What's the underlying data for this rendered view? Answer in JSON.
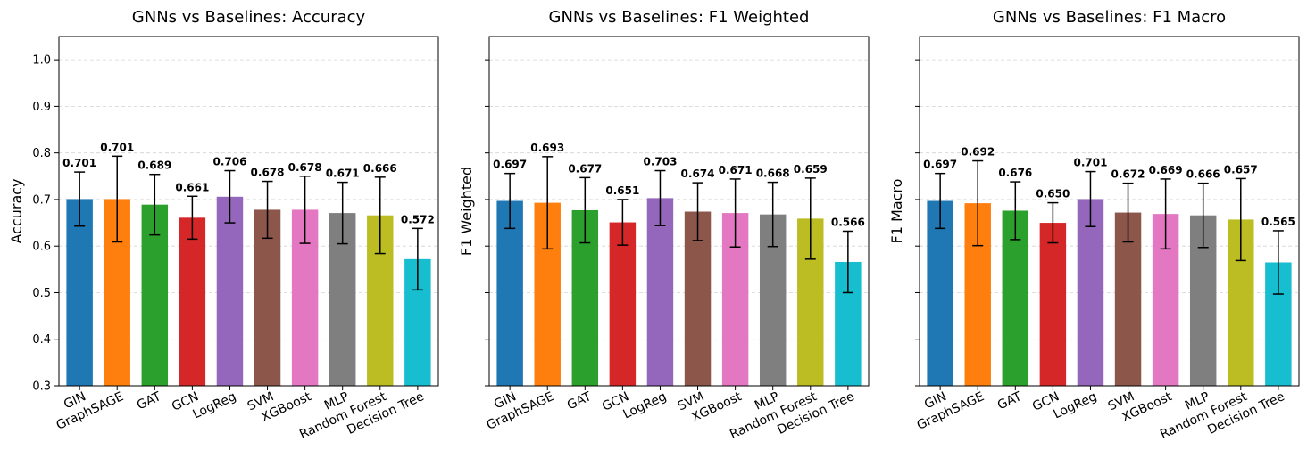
{
  "chart_data": [
    {
      "type": "bar",
      "title": "GNNs vs Baselines: Accuracy",
      "xlabel": "",
      "ylabel": "Accuracy",
      "ylim": [
        0.3,
        1.05
      ],
      "yticks": [
        "0.3",
        "0.4",
        "0.5",
        "0.6",
        "0.7",
        "0.8",
        "0.9",
        "1.0"
      ],
      "show_ytick_labels": true,
      "grid": "y, dashed",
      "categories": [
        "GIN",
        "GraphSAGE",
        "GAT",
        "GCN",
        "LogReg",
        "SVM",
        "XGBoost",
        "MLP",
        "Random Forest",
        "Decision Tree"
      ],
      "values": [
        0.701,
        0.701,
        0.689,
        0.661,
        0.706,
        0.678,
        0.678,
        0.671,
        0.666,
        0.572
      ],
      "value_labels": [
        "0.701",
        "0.701",
        "0.689",
        "0.661",
        "0.706",
        "0.678",
        "0.678",
        "0.671",
        "0.666",
        "0.572"
      ],
      "errors": [
        0.058,
        0.092,
        0.065,
        0.046,
        0.056,
        0.061,
        0.072,
        0.066,
        0.082,
        0.066
      ],
      "colors": [
        "#1f77b4",
        "#ff7f0e",
        "#2ca02c",
        "#d62728",
        "#9467bd",
        "#8c564b",
        "#e377c2",
        "#7f7f7f",
        "#bcbd22",
        "#17becf"
      ]
    },
    {
      "type": "bar",
      "title": "GNNs vs Baselines: F1 Weighted",
      "xlabel": "",
      "ylabel": "F1 Weighted",
      "ylim": [
        0.3,
        1.05
      ],
      "yticks": [
        "0.3",
        "0.4",
        "0.5",
        "0.6",
        "0.7",
        "0.8",
        "0.9",
        "1.0"
      ],
      "show_ytick_labels": false,
      "grid": "y, dashed",
      "categories": [
        "GIN",
        "GraphSAGE",
        "GAT",
        "GCN",
        "LogReg",
        "SVM",
        "XGBoost",
        "MLP",
        "Random Forest",
        "Decision Tree"
      ],
      "values": [
        0.697,
        0.693,
        0.677,
        0.651,
        0.703,
        0.674,
        0.671,
        0.668,
        0.659,
        0.566
      ],
      "value_labels": [
        "0.697",
        "0.693",
        "0.677",
        "0.651",
        "0.703",
        "0.674",
        "0.671",
        "0.668",
        "0.659",
        "0.566"
      ],
      "errors": [
        0.059,
        0.099,
        0.07,
        0.049,
        0.059,
        0.062,
        0.073,
        0.069,
        0.087,
        0.066
      ],
      "colors": [
        "#1f77b4",
        "#ff7f0e",
        "#2ca02c",
        "#d62728",
        "#9467bd",
        "#8c564b",
        "#e377c2",
        "#7f7f7f",
        "#bcbd22",
        "#17becf"
      ]
    },
    {
      "type": "bar",
      "title": "GNNs vs Baselines: F1 Macro",
      "xlabel": "",
      "ylabel": "F1 Macro",
      "ylim": [
        0.3,
        1.05
      ],
      "yticks": [
        "0.3",
        "0.4",
        "0.5",
        "0.6",
        "0.7",
        "0.8",
        "0.9",
        "1.0"
      ],
      "show_ytick_labels": false,
      "grid": "y, dashed",
      "categories": [
        "GIN",
        "GraphSAGE",
        "GAT",
        "GCN",
        "LogReg",
        "SVM",
        "XGBoost",
        "MLP",
        "Random Forest",
        "Decision Tree"
      ],
      "values": [
        0.697,
        0.692,
        0.676,
        0.65,
        0.701,
        0.672,
        0.669,
        0.666,
        0.657,
        0.565
      ],
      "value_labels": [
        "0.697",
        "0.692",
        "0.676",
        "0.650",
        "0.701",
        "0.672",
        "0.669",
        "0.666",
        "0.657",
        "0.565"
      ],
      "errors": [
        0.059,
        0.091,
        0.062,
        0.043,
        0.059,
        0.063,
        0.075,
        0.069,
        0.088,
        0.068
      ],
      "colors": [
        "#1f77b4",
        "#ff7f0e",
        "#2ca02c",
        "#d62728",
        "#9467bd",
        "#8c564b",
        "#e377c2",
        "#7f7f7f",
        "#bcbd22",
        "#17becf"
      ]
    }
  ]
}
